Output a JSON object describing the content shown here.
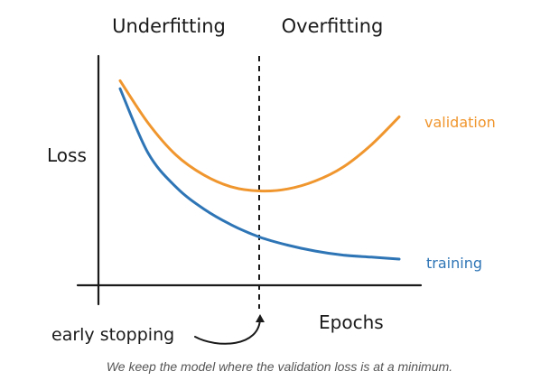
{
  "colors": {
    "training": "#2e75b6",
    "validation": "#f0962e",
    "axis": "#1a1a1a",
    "text": "#1a1a1a"
  },
  "chart_data": {
    "type": "line",
    "title": "",
    "xlabel": "Epochs",
    "ylabel": "Loss",
    "grid": false,
    "region_labels": [
      "Underfitting",
      "Overfitting"
    ],
    "annotations": [
      {
        "text": "early stopping",
        "target": "minimum of validation loss"
      }
    ],
    "x": [
      0.0,
      0.1,
      0.2,
      0.3,
      0.4,
      0.5,
      0.6,
      0.7,
      0.8,
      0.9,
      1.0
    ],
    "xlim": [
      0,
      1
    ],
    "ylim": [
      0,
      1
    ],
    "early_stop_x": 0.5,
    "series": [
      {
        "name": "training",
        "color": "#2e75b6",
        "values": [
          0.94,
          0.62,
          0.45,
          0.34,
          0.26,
          0.2,
          0.16,
          0.13,
          0.11,
          0.1,
          0.09
        ]
      },
      {
        "name": "validation",
        "color": "#f0962e",
        "values": [
          0.98,
          0.77,
          0.61,
          0.51,
          0.45,
          0.43,
          0.44,
          0.48,
          0.55,
          0.66,
          0.8
        ]
      }
    ]
  },
  "caption": "We keep the model where the validation loss is at a minimum."
}
